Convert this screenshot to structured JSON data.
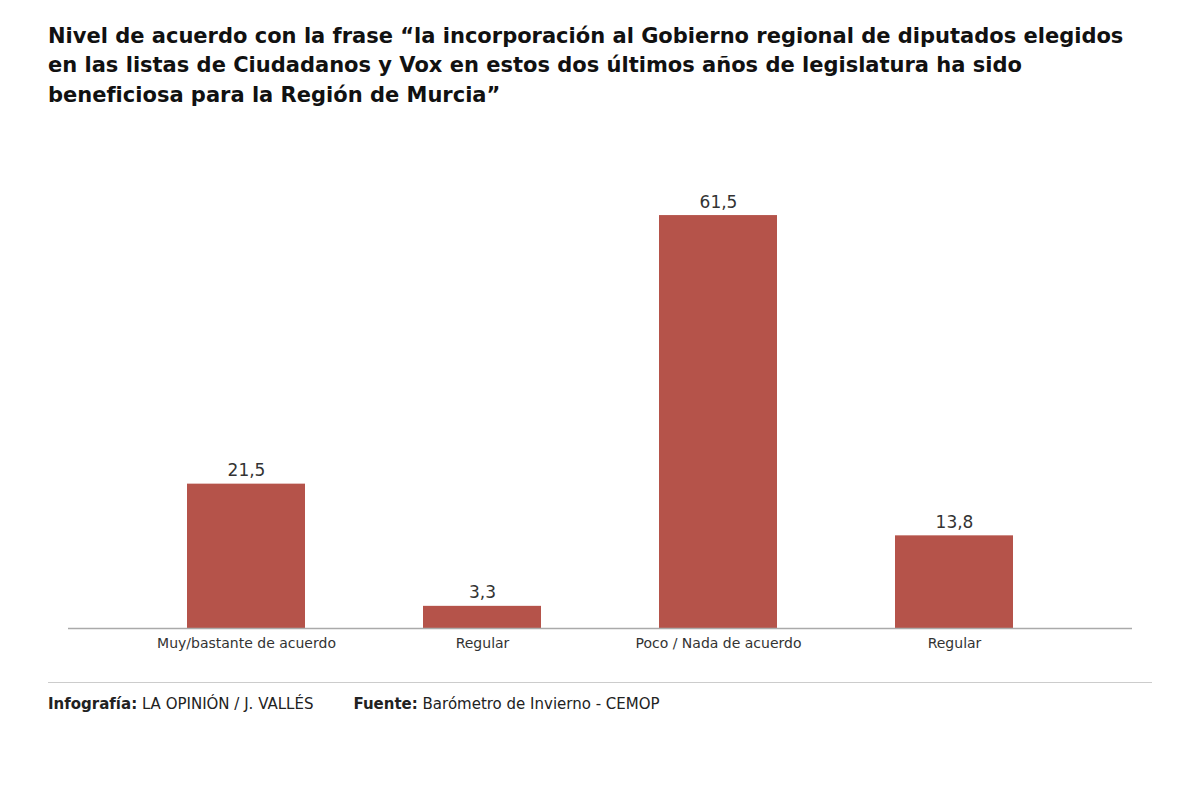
{
  "chart_data": {
    "type": "bar",
    "title": "Nivel de acuerdo con la frase “la incorporación al Gobierno regional de diputados elegidos en las listas de Ciudadanos y Vox en estos dos últimos años de legislatura ha sido beneficiosa para la Región de Murcia”",
    "categories": [
      "Muy/bastante de acuerdo",
      "Regular",
      "Poco / Nada de acuerdo",
      "Regular"
    ],
    "values": [
      21.5,
      3.3,
      61.5,
      13.8
    ],
    "value_labels": [
      "21,5",
      "3,3",
      "61,5",
      "13,8"
    ],
    "color": "#b5534a",
    "ylim": [
      0,
      70
    ],
    "grid": false,
    "data_labels": true,
    "tick_labels": "x",
    "annotations": [
      "Infografía: LA OPINIÓN / J. VALLÉS",
      "Fuente: Barómetro de Invierno - CEMOP"
    ]
  }
}
